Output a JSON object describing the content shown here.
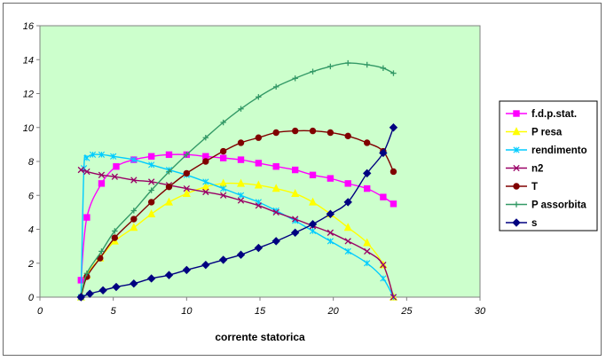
{
  "chart_data": {
    "type": "line",
    "title": "",
    "xlabel": "corrente statorica",
    "ylabel": "",
    "xlim": [
      0,
      30
    ],
    "ylim": [
      0,
      16
    ],
    "xticks": [
      0,
      5,
      10,
      15,
      20,
      25,
      30
    ],
    "yticks": [
      0,
      2,
      4,
      6,
      8,
      10,
      12,
      14,
      16
    ],
    "grid": false,
    "plot_background": "#ccffcc",
    "legend_position": "right",
    "series": [
      {
        "name": "f.d.p.stat.",
        "color": "#ff00ff",
        "marker": "square",
        "points": [
          [
            2.8,
            1.0
          ],
          [
            3.2,
            4.7
          ],
          [
            4.2,
            6.7
          ],
          [
            5.2,
            7.7
          ],
          [
            6.4,
            8.1
          ],
          [
            7.6,
            8.3
          ],
          [
            8.8,
            8.4
          ],
          [
            10.0,
            8.4
          ],
          [
            11.3,
            8.3
          ],
          [
            12.5,
            8.2
          ],
          [
            13.7,
            8.1
          ],
          [
            14.9,
            7.9
          ],
          [
            16.1,
            7.7
          ],
          [
            17.4,
            7.5
          ],
          [
            18.6,
            7.2
          ],
          [
            19.8,
            7.0
          ],
          [
            21.0,
            6.7
          ],
          [
            22.3,
            6.4
          ],
          [
            23.4,
            5.9
          ],
          [
            24.1,
            5.5
          ]
        ]
      },
      {
        "name": "P resa",
        "color": "#ffff00",
        "marker": "triangle",
        "points": [
          [
            2.8,
            0.0
          ],
          [
            3.2,
            1.3
          ],
          [
            4.1,
            2.3
          ],
          [
            5.1,
            3.3
          ],
          [
            6.4,
            4.1
          ],
          [
            7.6,
            4.9
          ],
          [
            8.8,
            5.6
          ],
          [
            10.0,
            6.1
          ],
          [
            11.3,
            6.5
          ],
          [
            12.5,
            6.7
          ],
          [
            13.7,
            6.7
          ],
          [
            14.9,
            6.6
          ],
          [
            16.1,
            6.4
          ],
          [
            17.4,
            6.1
          ],
          [
            18.6,
            5.6
          ],
          [
            19.8,
            4.9
          ],
          [
            21.0,
            4.1
          ],
          [
            22.3,
            3.2
          ],
          [
            23.4,
            1.9
          ],
          [
            24.1,
            0.0
          ]
        ]
      },
      {
        "name": "rendimento",
        "color": "#00ccff",
        "marker": "star",
        "points": [
          [
            2.8,
            0.0
          ],
          [
            3.0,
            7.6
          ],
          [
            3.2,
            8.2
          ],
          [
            3.6,
            8.4
          ],
          [
            4.2,
            8.4
          ],
          [
            5.0,
            8.3
          ],
          [
            6.4,
            8.1
          ],
          [
            7.6,
            7.8
          ],
          [
            8.8,
            7.5
          ],
          [
            10.0,
            7.2
          ],
          [
            11.3,
            6.8
          ],
          [
            12.5,
            6.4
          ],
          [
            13.7,
            6.0
          ],
          [
            14.9,
            5.6
          ],
          [
            16.1,
            5.1
          ],
          [
            17.4,
            4.5
          ],
          [
            18.6,
            3.9
          ],
          [
            19.8,
            3.3
          ],
          [
            21.0,
            2.7
          ],
          [
            22.3,
            2.0
          ],
          [
            23.4,
            1.1
          ],
          [
            24.1,
            0.0
          ]
        ]
      },
      {
        "name": "n2",
        "color": "#990066",
        "marker": "x",
        "points": [
          [
            2.8,
            7.5
          ],
          [
            3.2,
            7.4
          ],
          [
            4.2,
            7.2
          ],
          [
            5.1,
            7.1
          ],
          [
            6.4,
            6.9
          ],
          [
            7.6,
            6.8
          ],
          [
            8.8,
            6.6
          ],
          [
            10.0,
            6.4
          ],
          [
            11.3,
            6.2
          ],
          [
            12.5,
            6.0
          ],
          [
            13.7,
            5.7
          ],
          [
            14.9,
            5.4
          ],
          [
            16.1,
            5.0
          ],
          [
            17.4,
            4.6
          ],
          [
            18.6,
            4.2
          ],
          [
            19.8,
            3.8
          ],
          [
            21.0,
            3.3
          ],
          [
            22.3,
            2.7
          ],
          [
            23.4,
            1.9
          ],
          [
            24.1,
            0.0
          ]
        ]
      },
      {
        "name": "T",
        "color": "#800000",
        "marker": "circle",
        "points": [
          [
            2.8,
            0.0
          ],
          [
            3.2,
            1.2
          ],
          [
            4.1,
            2.3
          ],
          [
            5.1,
            3.5
          ],
          [
            6.4,
            4.6
          ],
          [
            7.6,
            5.6
          ],
          [
            8.8,
            6.5
          ],
          [
            10.0,
            7.3
          ],
          [
            11.3,
            8.0
          ],
          [
            12.5,
            8.6
          ],
          [
            13.7,
            9.1
          ],
          [
            14.9,
            9.4
          ],
          [
            16.1,
            9.7
          ],
          [
            17.4,
            9.8
          ],
          [
            18.6,
            9.8
          ],
          [
            19.8,
            9.7
          ],
          [
            21.0,
            9.5
          ],
          [
            22.3,
            9.1
          ],
          [
            23.4,
            8.6
          ],
          [
            24.1,
            7.4
          ]
        ]
      },
      {
        "name": "P assorbita",
        "color": "#339966",
        "marker": "plus",
        "points": [
          [
            2.8,
            0.1
          ],
          [
            3.2,
            1.4
          ],
          [
            4.2,
            2.7
          ],
          [
            5.1,
            3.9
          ],
          [
            6.4,
            5.1
          ],
          [
            7.6,
            6.3
          ],
          [
            8.8,
            7.4
          ],
          [
            10.0,
            8.4
          ],
          [
            11.3,
            9.4
          ],
          [
            12.5,
            10.3
          ],
          [
            13.7,
            11.1
          ],
          [
            14.9,
            11.8
          ],
          [
            16.1,
            12.4
          ],
          [
            17.4,
            12.9
          ],
          [
            18.6,
            13.3
          ],
          [
            19.8,
            13.6
          ],
          [
            21.0,
            13.8
          ],
          [
            22.3,
            13.7
          ],
          [
            23.4,
            13.5
          ],
          [
            24.1,
            13.2
          ]
        ]
      },
      {
        "name": "s",
        "color": "#000080",
        "marker": "diamond",
        "points": [
          [
            2.8,
            0.0
          ],
          [
            3.4,
            0.2
          ],
          [
            4.3,
            0.4
          ],
          [
            5.2,
            0.6
          ],
          [
            6.4,
            0.8
          ],
          [
            7.6,
            1.1
          ],
          [
            8.8,
            1.3
          ],
          [
            10.0,
            1.6
          ],
          [
            11.3,
            1.9
          ],
          [
            12.5,
            2.2
          ],
          [
            13.7,
            2.5
          ],
          [
            14.9,
            2.9
          ],
          [
            16.1,
            3.3
          ],
          [
            17.4,
            3.8
          ],
          [
            18.6,
            4.3
          ],
          [
            19.8,
            4.9
          ],
          [
            21.0,
            5.6
          ],
          [
            22.3,
            7.3
          ],
          [
            23.4,
            8.5
          ],
          [
            24.1,
            10.0
          ]
        ]
      }
    ]
  }
}
